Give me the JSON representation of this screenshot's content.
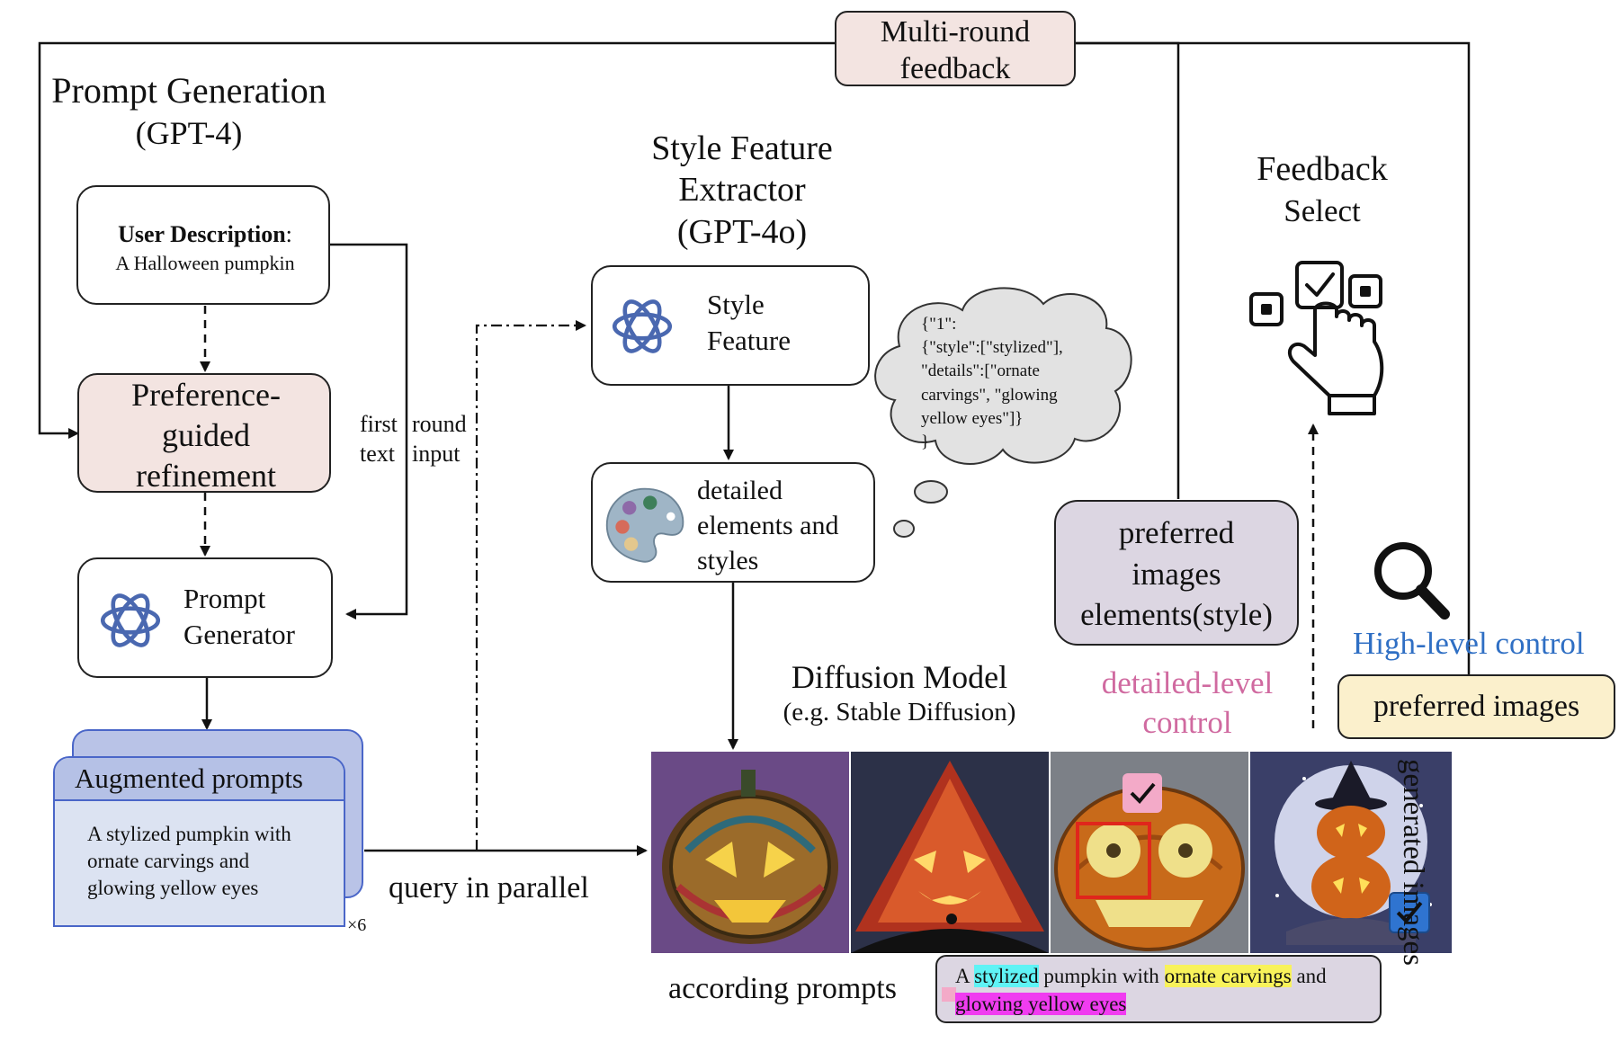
{
  "multi_round": {
    "line1": "Multi-round",
    "line2": "feedback"
  },
  "prompt_gen": {
    "title": "Prompt Generation",
    "sub": "(GPT-4)"
  },
  "user_desc": {
    "label": "User Description",
    "colon": ":",
    "value": "A Halloween pumpkin"
  },
  "pref_refine": {
    "l1": "Preference-",
    "l2": "guided",
    "l3": "refinement"
  },
  "first_round": {
    "a1": "first",
    "a2": "round",
    "b1": "text",
    "b2": "input"
  },
  "prompt_generator": {
    "l1": "Prompt",
    "l2": "Generator"
  },
  "augmented": {
    "title": "Augmented prompts",
    "l1": "A stylized pumpkin with",
    "l2": "ornate carvings and",
    "l3": "glowing yellow eyes",
    "count": "×6"
  },
  "query": "query in parallel",
  "style_extractor": {
    "l1": "Style Feature",
    "l2": "Extractor",
    "l3": "(GPT-4o)"
  },
  "style_feature": {
    "l1": "Style",
    "l2": "Feature"
  },
  "detailed_box": {
    "l1": "detailed",
    "l2": "elements and",
    "l3": "styles"
  },
  "json_cloud": {
    "l1": "{\"1\":",
    "l2": "{\"style\":[\"stylized\"],",
    "l3": "\"details\":[\"ornate",
    "l4": "carvings\", \"glowing",
    "l5": "yellow eyes\"]}",
    "l6": "}"
  },
  "diffusion": {
    "title": "Diffusion Model",
    "sub": "(e.g. Stable Diffusion)"
  },
  "preferred_box": {
    "l1": "preferred",
    "l2": "images",
    "l3": "elements(style)"
  },
  "detailed_control": {
    "l1": "detailed-level",
    "l2": "control"
  },
  "feedback_select": {
    "l1": "Feedback",
    "l2": "Select"
  },
  "high_level": "High-level control",
  "preferred_images": "preferred images",
  "generated_images": "generated images",
  "according": "according prompts",
  "caption": {
    "w1": "A ",
    "w2": "stylized",
    "w3": " pumpkin with ",
    "w4": "ornate carvings",
    "w5": " and",
    "w6": "glowing yellow eyes"
  },
  "colors": {
    "pink": "#f3e4e1",
    "lavender": "#dcd6e2",
    "blue_card": "#dce3f2",
    "blue_header": "#b5c1e6",
    "cream": "#fbf0cc",
    "high_level": "#2f6fc4",
    "detailed_level": "#d06aa0",
    "openai_blue": "#4a68b0"
  },
  "icons": [
    "openai-logo-icon",
    "palette-icon",
    "thought-cloud-icon",
    "hand-select-icon",
    "magnifier-icon",
    "checkbox-icon"
  ]
}
